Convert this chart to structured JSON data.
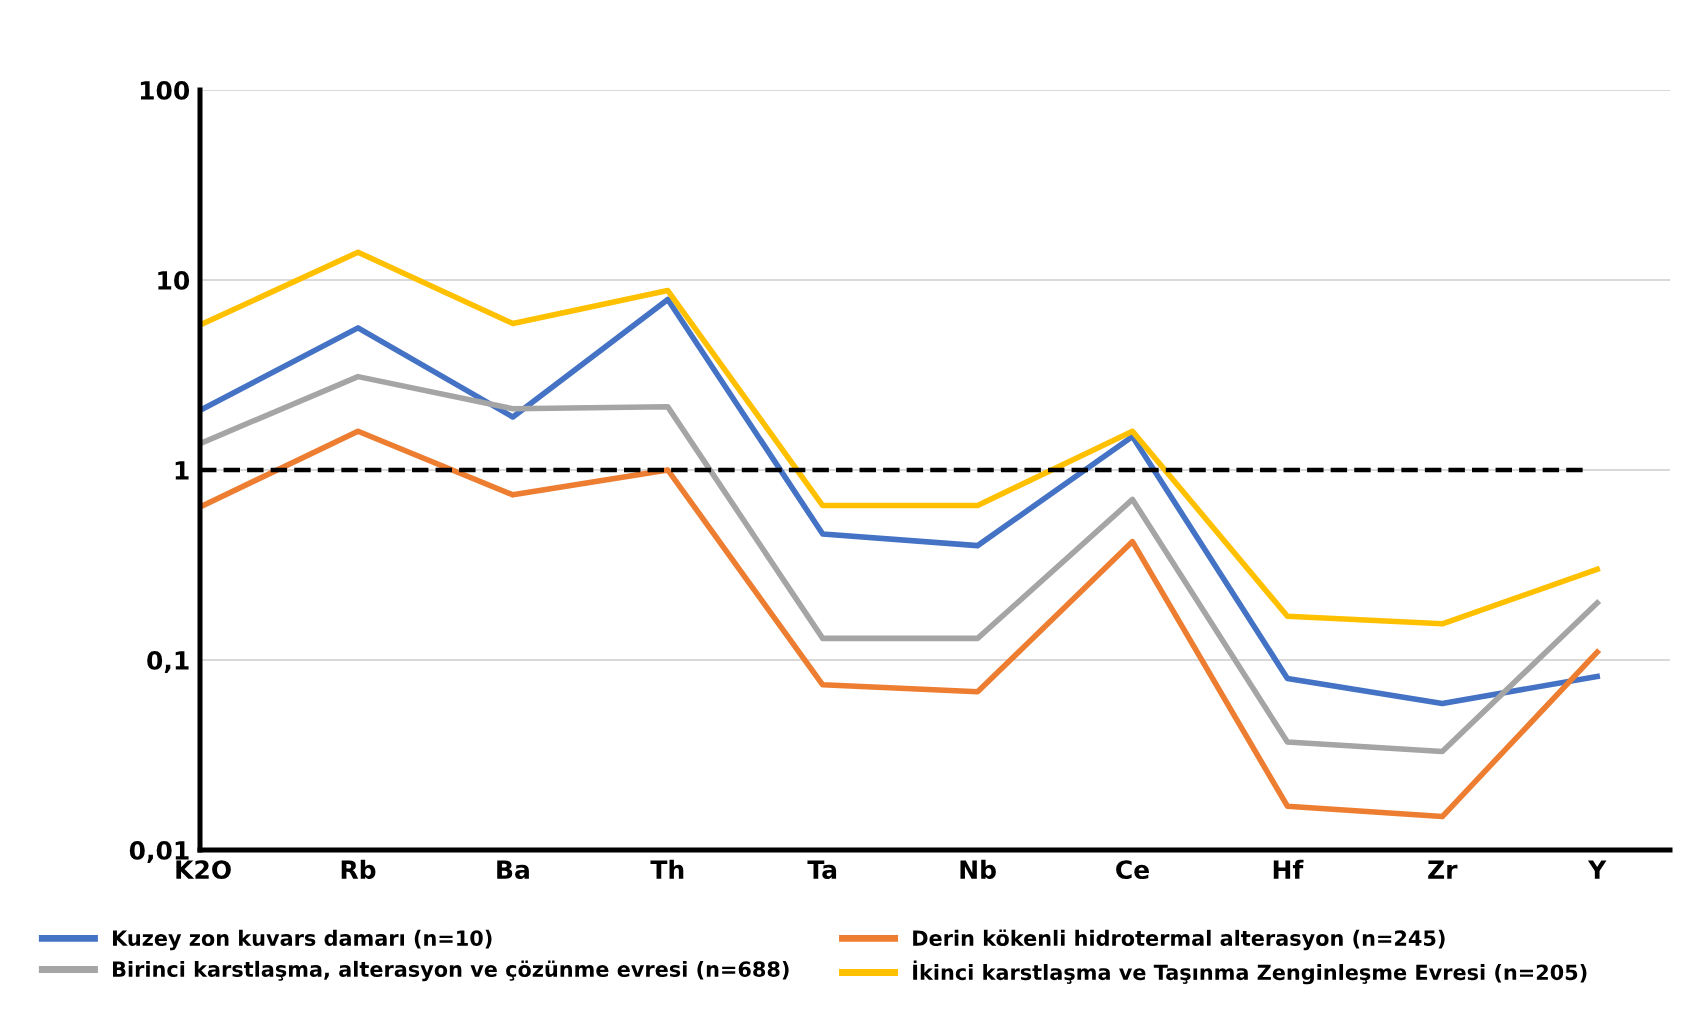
{
  "chart_data": {
    "type": "line",
    "log": "y",
    "ylim": [
      0.01,
      100
    ],
    "yticks": [
      {
        "value": 0.01,
        "label": "0,01"
      },
      {
        "value": 0.1,
        "label": "0,1"
      },
      1,
      10,
      100
    ],
    "grid": "y",
    "legend": "bottom",
    "marker": "none",
    "line_style": "solid",
    "categories": [
      "K2O",
      "Rb",
      "Ba",
      "Th",
      "Ta",
      "Nb",
      "Ce",
      "Hf",
      "Zr",
      "Y"
    ],
    "series": [
      {
        "name": "Kuzey zon kuvars damarı (n=10)",
        "color": "#4472c4",
        "values": [
          2.1,
          5.6,
          1.9,
          7.9,
          0.46,
          0.4,
          1.5,
          0.08,
          0.059,
          0.082
        ]
      },
      {
        "name": "Birinci karstlaşma, alterasyon ve çözünme evresi (n=688)",
        "color": "#a5a5a5",
        "values": [
          1.4,
          3.1,
          2.1,
          2.15,
          0.13,
          0.13,
          0.7,
          0.037,
          0.033,
          0.2
        ]
      },
      {
        "name": "Derin kökenli hidrotermal alterasyon (n=245)",
        "color": "#ed7d31",
        "values": [
          0.65,
          1.6,
          0.74,
          1.0,
          0.074,
          0.068,
          0.42,
          0.017,
          0.015,
          0.11
        ]
      },
      {
        "name": "İkinci karstlaşma ve Taşınma Zenginleşme Evresi (n=205)",
        "color": "#ffc000",
        "values": [
          5.9,
          14,
          5.9,
          8.8,
          0.65,
          0.65,
          1.6,
          0.17,
          0.155,
          0.3
        ]
      }
    ],
    "ref_lines": [
      {
        "axis": "y",
        "value": 1,
        "color": "#000000",
        "line_style": "dashed"
      }
    ]
  }
}
